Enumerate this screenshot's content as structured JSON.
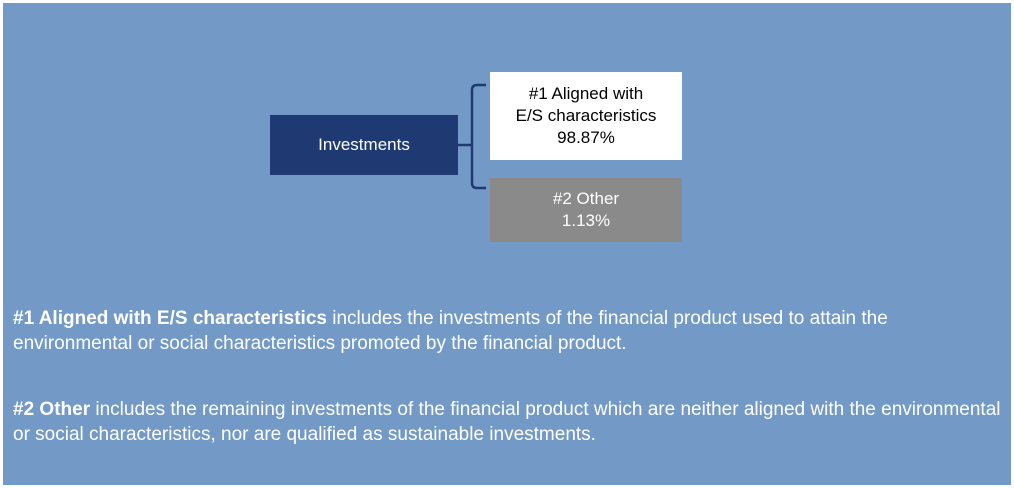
{
  "diagram": {
    "root": {
      "label": "Investments"
    },
    "children": [
      {
        "label": [
          "#1 Aligned with",
          "E/S characteristics"
        ],
        "value": "98.87%"
      },
      {
        "label": [
          "#2 Other"
        ],
        "value": "1.13%"
      }
    ]
  },
  "notes": [
    {
      "term": "#1 Aligned with E/S characteristics",
      "text": " includes the investments of the financial product used to attain the environmental or social characteristics promoted by the financial product."
    },
    {
      "term": "#2 Other",
      "text": " includes the remaining investments of the financial product which are neither aligned with the environmental or social characteristics, nor are qualified as sustainable investments."
    }
  ]
}
